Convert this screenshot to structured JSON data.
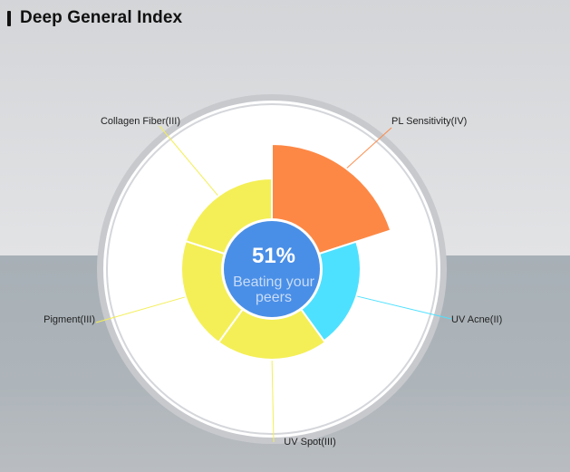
{
  "header": {
    "title": "Deep General Index"
  },
  "center": {
    "percent": "51%",
    "line1": "Beating your",
    "line2": "peers"
  },
  "colors": {
    "orange": "#fd8845",
    "cyan": "#4ee1ff",
    "yellow": "#f4ef56",
    "center": "#4a8fe7",
    "ring": "#cfd1d5"
  },
  "chart_data": {
    "type": "pie",
    "subtype": "nightingale-rose",
    "categories": [
      "PL Sensitivity(IV)",
      "UV Acne(II)",
      "UV Spot(III)",
      "Pigment(III)",
      "Collagen Fiber(III)"
    ],
    "grades": [
      4,
      2,
      3,
      3,
      3
    ],
    "label_colors": [
      "orange",
      "cyan",
      "yellow",
      "yellow",
      "yellow"
    ]
  }
}
